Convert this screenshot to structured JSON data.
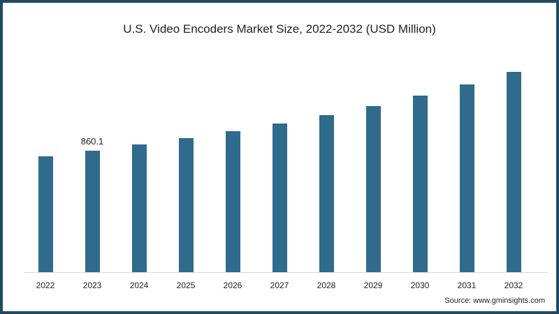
{
  "chart_data": {
    "type": "bar",
    "title": "U.S. Video Encoders Market Size, 2022-2032 (USD Million)",
    "categories": [
      "2022",
      "2023",
      "2024",
      "2025",
      "2026",
      "2027",
      "2028",
      "2029",
      "2030",
      "2031",
      "2032"
    ],
    "values": [
      820.6,
      860.1,
      904.6,
      949.0,
      998.5,
      1052.9,
      1112.2,
      1176.5,
      1250.6,
      1329.7,
      1418.7
    ],
    "data_labels": [
      {
        "category": "2023",
        "text": "860.1"
      }
    ],
    "xlabel": "",
    "ylabel": "",
    "ylim": [
      0,
      1500
    ],
    "grid": false,
    "legend": "none",
    "bar_color": "#2e6b8c"
  },
  "source": "Source: www.gminsights.com",
  "colors": {
    "frame": "#1e4a63",
    "bar": "#2e6b8c"
  }
}
